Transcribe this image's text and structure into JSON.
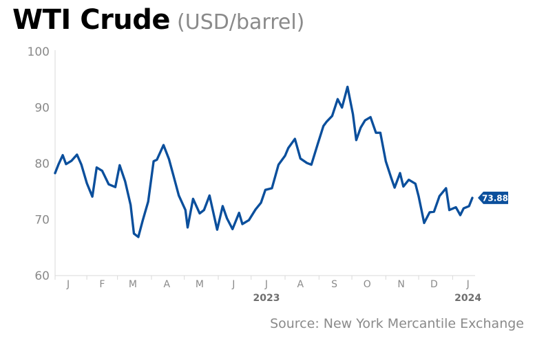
{
  "title": {
    "main": "WTI Crude",
    "unit": "(USD/barrel)"
  },
  "source": "Source: New York Mercantile Exchange",
  "colors": {
    "line": "#0b4f9c",
    "label_bg": "#0b4f9c",
    "axis_text": "#8a8a8a",
    "axis_line": "#d9d9d9",
    "year_text": "#6f6f6f"
  },
  "chart_data": {
    "type": "line",
    "title": "WTI Crude",
    "ylabel": "",
    "xlabel": "",
    "ylim": [
      60,
      100
    ],
    "yticks": [
      "60",
      "70",
      "80",
      "90",
      "100"
    ],
    "x_months": [
      "J",
      "F",
      "M",
      "A",
      "M",
      "J",
      "J",
      "A",
      "S",
      "O",
      "N",
      "D",
      "J"
    ],
    "year_labels": [
      {
        "text": "2023",
        "at_month": 6
      },
      {
        "text": "2024",
        "at_month": 12
      }
    ],
    "last_value_label": "73.88",
    "grid": false,
    "series": [
      {
        "x": [
          "2023-01-03",
          "2023-01-06",
          "2023-01-10",
          "2023-01-13",
          "2023-01-18",
          "2023-01-23",
          "2023-01-27",
          "2023-02-01",
          "2023-02-06",
          "2023-02-10",
          "2023-02-15",
          "2023-02-21",
          "2023-02-27",
          "2023-03-03",
          "2023-03-08",
          "2023-03-13",
          "2023-03-16",
          "2023-03-20",
          "2023-03-24",
          "2023-03-29",
          "2023-04-03",
          "2023-04-06",
          "2023-04-12",
          "2023-04-17",
          "2023-04-21",
          "2023-04-26",
          "2023-05-02",
          "2023-05-04",
          "2023-05-09",
          "2023-05-15",
          "2023-05-19",
          "2023-05-24",
          "2023-05-31",
          "2023-06-05",
          "2023-06-09",
          "2023-06-14",
          "2023-06-20",
          "2023-06-23",
          "2023-06-29",
          "2023-07-05",
          "2023-07-10",
          "2023-07-14",
          "2023-07-20",
          "2023-07-26",
          "2023-08-01",
          "2023-08-04",
          "2023-08-10",
          "2023-08-15",
          "2023-08-21",
          "2023-08-25",
          "2023-08-31",
          "2023-09-05",
          "2023-09-08",
          "2023-09-13",
          "2023-09-18",
          "2023-09-22",
          "2023-09-27",
          "2023-10-02",
          "2023-10-05",
          "2023-10-09",
          "2023-10-13",
          "2023-10-18",
          "2023-10-23",
          "2023-10-27",
          "2023-11-01",
          "2023-11-06",
          "2023-11-09",
          "2023-11-14",
          "2023-11-17",
          "2023-11-22",
          "2023-11-28",
          "2023-12-01",
          "2023-12-06",
          "2023-12-11",
          "2023-12-15",
          "2023-12-20",
          "2023-12-26",
          "2023-12-29",
          "2024-01-04",
          "2024-01-08",
          "2024-01-11",
          "2024-01-16",
          "2024-01-19"
        ],
        "y": [
          78.3,
          79.8,
          81.5,
          79.9,
          80.5,
          81.6,
          79.8,
          76.5,
          74.1,
          79.3,
          78.7,
          76.3,
          75.8,
          79.7,
          76.8,
          72.6,
          67.5,
          66.9,
          69.8,
          73.2,
          80.4,
          80.7,
          83.3,
          80.8,
          77.9,
          74.3,
          71.7,
          68.6,
          73.7,
          71.1,
          71.7,
          74.3,
          68.2,
          72.4,
          70.2,
          68.3,
          71.2,
          69.2,
          69.9,
          71.8,
          73.0,
          75.3,
          75.6,
          79.8,
          81.4,
          82.8,
          84.4,
          80.9,
          80.1,
          79.8,
          83.6,
          86.7,
          87.5,
          88.5,
          91.5,
          90.0,
          93.7,
          88.8,
          84.2,
          86.4,
          87.7,
          88.3,
          85.5,
          85.5,
          80.4,
          77.4,
          75.7,
          78.3,
          75.9,
          77.1,
          76.4,
          74.1,
          69.4,
          71.3,
          71.4,
          74.2,
          75.6,
          71.7,
          72.2,
          70.8,
          72.0,
          72.4,
          73.88
        ]
      }
    ]
  }
}
